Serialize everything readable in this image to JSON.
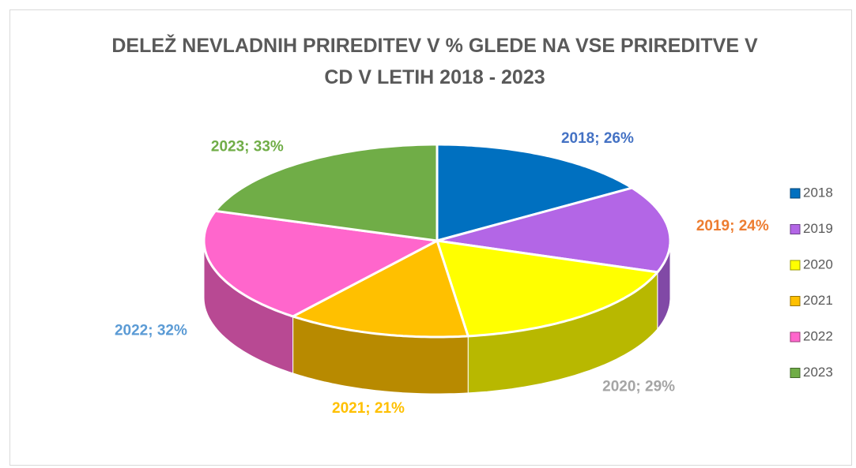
{
  "chart_data": {
    "type": "pie3d",
    "title": "DELEŽ NEVLADNIH PRIREDITEV V % GLEDE NA VSE PRIREDITVE V CD V LETIH 2018 - 2023",
    "categories": [
      "2018",
      "2019",
      "2020",
      "2021",
      "2022",
      "2023"
    ],
    "values": [
      26,
      24,
      29,
      21,
      32,
      33
    ],
    "value_labels": [
      "2018; 26%",
      "2019; 24%",
      "2020; 29%",
      "2021; 21%",
      "2022; 32%",
      "2023; 33%"
    ],
    "colors": [
      "#0070c0",
      "#b366e6",
      "#ffff00",
      "#ffc000",
      "#ff66cc",
      "#70ad47"
    ],
    "label_colors": [
      "#4472c4",
      "#ed7d31",
      "#a5a5a5",
      "#ffc000",
      "#5b9bd5",
      "#70ad47"
    ],
    "legend": "right"
  }
}
